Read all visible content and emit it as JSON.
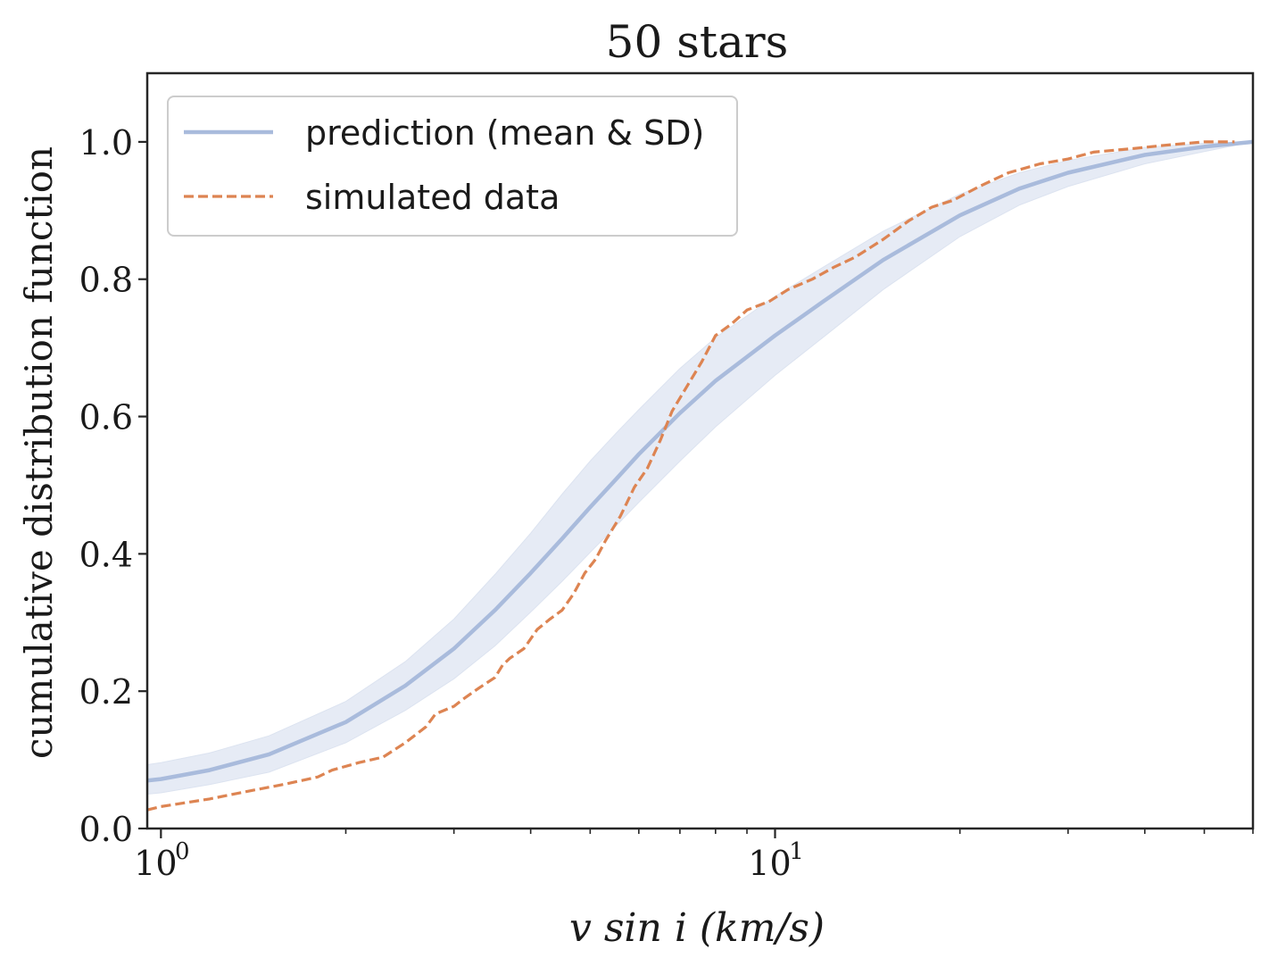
{
  "chart_data": {
    "type": "line",
    "title": "50 stars",
    "xlabel": "v sin i (km/s)",
    "ylabel": "cumulative distribution function",
    "xscale": "log",
    "xlim": [
      0.95,
      60
    ],
    "ylim": [
      0.0,
      1.1
    ],
    "xticks_major": [
      {
        "value": 1,
        "label": "10",
        "sup": "0"
      },
      {
        "value": 10,
        "label": "10",
        "sup": "1"
      }
    ],
    "xticks_minor": [
      2,
      3,
      4,
      5,
      6,
      7,
      8,
      9,
      20,
      30,
      40,
      50,
      60
    ],
    "yticks": [
      {
        "value": 0.0,
        "label": "0.0"
      },
      {
        "value": 0.2,
        "label": "0.2"
      },
      {
        "value": 0.4,
        "label": "0.4"
      },
      {
        "value": 0.6,
        "label": "0.6"
      },
      {
        "value": 0.8,
        "label": "0.8"
      },
      {
        "value": 1.0,
        "label": "1.0"
      }
    ],
    "legend": {
      "location": "top-left",
      "entries": [
        {
          "label": "prediction (mean & SD)",
          "series": "prediction"
        },
        {
          "label": "simulated data",
          "series": "simulated"
        }
      ]
    },
    "series": [
      {
        "name": "prediction (mean & SD)",
        "color": "#a9bbdc",
        "band_color": "#e6ebf5",
        "style": "solid",
        "x": [
          0.95,
          1.0,
          1.2,
          1.5,
          2.0,
          2.5,
          3.0,
          3.5,
          4.0,
          4.5,
          5.0,
          5.5,
          6.0,
          7.0,
          8.0,
          10.0,
          12.0,
          15.0,
          20.0,
          25.0,
          30.0,
          40.0,
          50.0,
          60.0
        ],
        "mean": [
          0.07,
          0.072,
          0.085,
          0.108,
          0.155,
          0.208,
          0.262,
          0.318,
          0.372,
          0.422,
          0.468,
          0.508,
          0.545,
          0.605,
          0.652,
          0.718,
          0.768,
          0.828,
          0.893,
          0.932,
          0.955,
          0.981,
          0.993,
          1.0
        ],
        "lower": [
          0.05,
          0.052,
          0.064,
          0.082,
          0.125,
          0.172,
          0.218,
          0.266,
          0.315,
          0.36,
          0.402,
          0.44,
          0.475,
          0.535,
          0.585,
          0.66,
          0.716,
          0.785,
          0.862,
          0.908,
          0.935,
          0.968,
          0.986,
          1.0
        ],
        "upper": [
          0.093,
          0.096,
          0.11,
          0.135,
          0.185,
          0.243,
          0.305,
          0.37,
          0.43,
          0.487,
          0.535,
          0.575,
          0.61,
          0.67,
          0.715,
          0.775,
          0.818,
          0.87,
          0.924,
          0.955,
          0.973,
          0.992,
          0.998,
          1.0
        ]
      },
      {
        "name": "simulated data",
        "color": "#dd8452",
        "style": "dashed",
        "x": [
          0.95,
          1.0,
          1.2,
          1.4,
          1.6,
          1.8,
          1.9,
          2.1,
          2.3,
          2.5,
          2.7,
          2.8,
          3.0,
          3.1,
          3.3,
          3.5,
          3.6,
          3.7,
          3.9,
          4.1,
          4.3,
          4.5,
          4.7,
          4.9,
          5.1,
          5.3,
          5.6,
          5.9,
          6.2,
          6.5,
          6.8,
          7.2,
          7.6,
          8.0,
          8.5,
          9.0,
          9.8,
          10.5,
          11.5,
          12.5,
          13.5,
          15.0,
          16.5,
          18.0,
          19.5,
          21.5,
          24.0,
          27.0,
          30.0,
          33.0,
          38.0,
          43.0,
          50.0,
          56.0
        ],
        "y": [
          0.027,
          0.032,
          0.043,
          0.055,
          0.065,
          0.075,
          0.085,
          0.096,
          0.104,
          0.125,
          0.148,
          0.167,
          0.178,
          0.188,
          0.205,
          0.22,
          0.238,
          0.248,
          0.262,
          0.29,
          0.305,
          0.318,
          0.342,
          0.372,
          0.392,
          0.42,
          0.455,
          0.497,
          0.525,
          0.565,
          0.608,
          0.645,
          0.68,
          0.718,
          0.735,
          0.755,
          0.768,
          0.785,
          0.8,
          0.818,
          0.832,
          0.858,
          0.885,
          0.905,
          0.915,
          0.935,
          0.955,
          0.968,
          0.975,
          0.985,
          0.99,
          0.995,
          1.0,
          1.0
        ]
      }
    ]
  }
}
